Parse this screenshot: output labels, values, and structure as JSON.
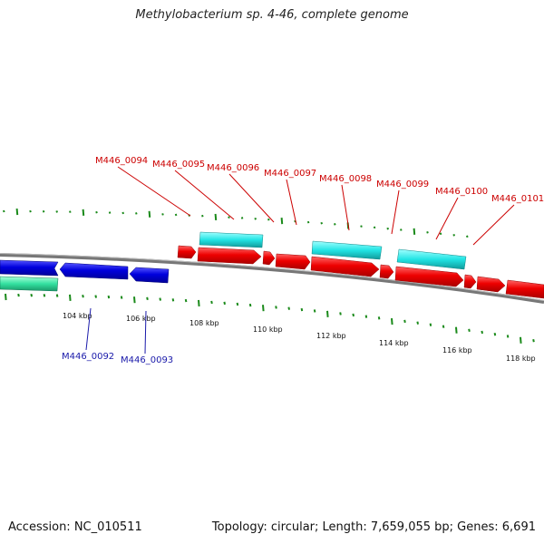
{
  "title": "Methylobacterium sp. 4-46, complete genome",
  "footer": {
    "accession": "Accession: NC_010511",
    "summary": "Topology: circular; Length: 7,659,055 bp; Genes: 6,691"
  },
  "colors": {
    "forward_cds": "#ee0000",
    "reverse_cds": "#0000dd",
    "forward_rna": "#22e4e4",
    "reverse_rna": "#33e0a0",
    "backbone": "#777777",
    "ticks": "#1a8a1a",
    "label_red": "#cc0000",
    "label_blue": "#1a1aaa"
  },
  "kbp_ticks": [
    "104 kbp",
    "106 kbp",
    "108 kbp",
    "110 kbp",
    "112 kbp",
    "114 kbp",
    "116 kbp",
    "118 kbp"
  ],
  "forward_gene_labels": [
    "M446_0094",
    "M446_0095",
    "M446_0096",
    "M446_0097",
    "M446_0098",
    "M446_0099",
    "M446_0100",
    "M446_0101"
  ],
  "reverse_gene_labels": [
    "M446_0092",
    "M446_0093"
  ]
}
